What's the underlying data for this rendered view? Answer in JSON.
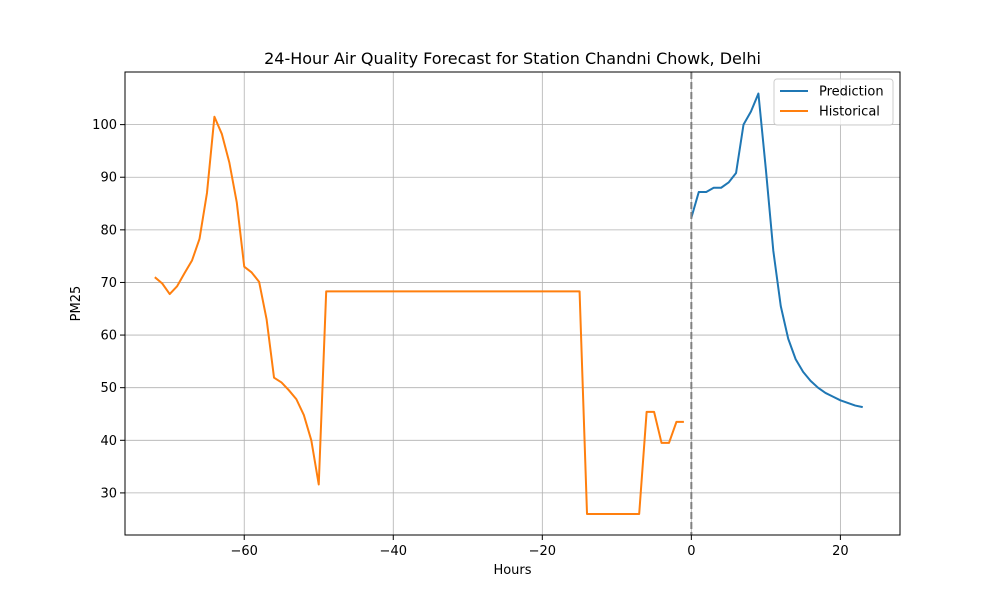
{
  "chart_data": {
    "type": "line",
    "title": "24-Hour Air Quality Forecast for Station Chandni Chowk, Delhi",
    "xlabel": "Hours",
    "ylabel": "PM25",
    "xlim": [
      -76,
      28
    ],
    "ylim": [
      22,
      110
    ],
    "xticks": [
      -60,
      -40,
      -20,
      0,
      20
    ],
    "xtick_labels": [
      "−60",
      "−40",
      "−20",
      "0",
      "20"
    ],
    "yticks": [
      30,
      40,
      50,
      60,
      70,
      80,
      90,
      100
    ],
    "ytick_labels": [
      "30",
      "40",
      "50",
      "60",
      "70",
      "80",
      "90",
      "100"
    ],
    "grid": true,
    "legend_position": "top-right",
    "vline": {
      "x": 0,
      "style": "dashed",
      "color": "#808080"
    },
    "series": [
      {
        "name": "Prediction",
        "color": "#1f77b4",
        "x": [
          0,
          1,
          2,
          3,
          4,
          5,
          6,
          7,
          8,
          9,
          10,
          11,
          12,
          13,
          14,
          15,
          16,
          17,
          18,
          19,
          20,
          21,
          22,
          23
        ],
        "y": [
          82.3,
          87.2,
          87.2,
          88.0,
          88.0,
          89.0,
          90.8,
          100.0,
          102.5,
          105.9,
          91.5,
          76.0,
          65.5,
          59.3,
          55.4,
          53.0,
          51.3,
          50.0,
          49.0,
          48.3,
          47.6,
          47.1,
          46.6,
          46.3
        ]
      },
      {
        "name": "Historical",
        "color": "#ff7f0e",
        "x": [
          -72,
          -71,
          -70,
          -69,
          -68,
          -67,
          -66,
          -65,
          -64,
          -63,
          -62,
          -61,
          -60,
          -59,
          -58,
          -57,
          -56,
          -55,
          -54,
          -53,
          -52,
          -51,
          -50,
          -49,
          -15,
          -14,
          -7,
          -6,
          -5,
          -4,
          -3,
          -2,
          -1
        ],
        "y": [
          71.0,
          69.8,
          67.8,
          69.3,
          71.8,
          74.2,
          78.3,
          87.0,
          101.5,
          98.2,
          92.8,
          85.2,
          73.0,
          71.9,
          70.1,
          63.0,
          51.9,
          51.0,
          49.5,
          47.8,
          44.8,
          40.0,
          31.6,
          68.3,
          68.3,
          26.0,
          26.0,
          45.4,
          45.4,
          39.5,
          39.5,
          43.5,
          43.5
        ]
      }
    ]
  }
}
